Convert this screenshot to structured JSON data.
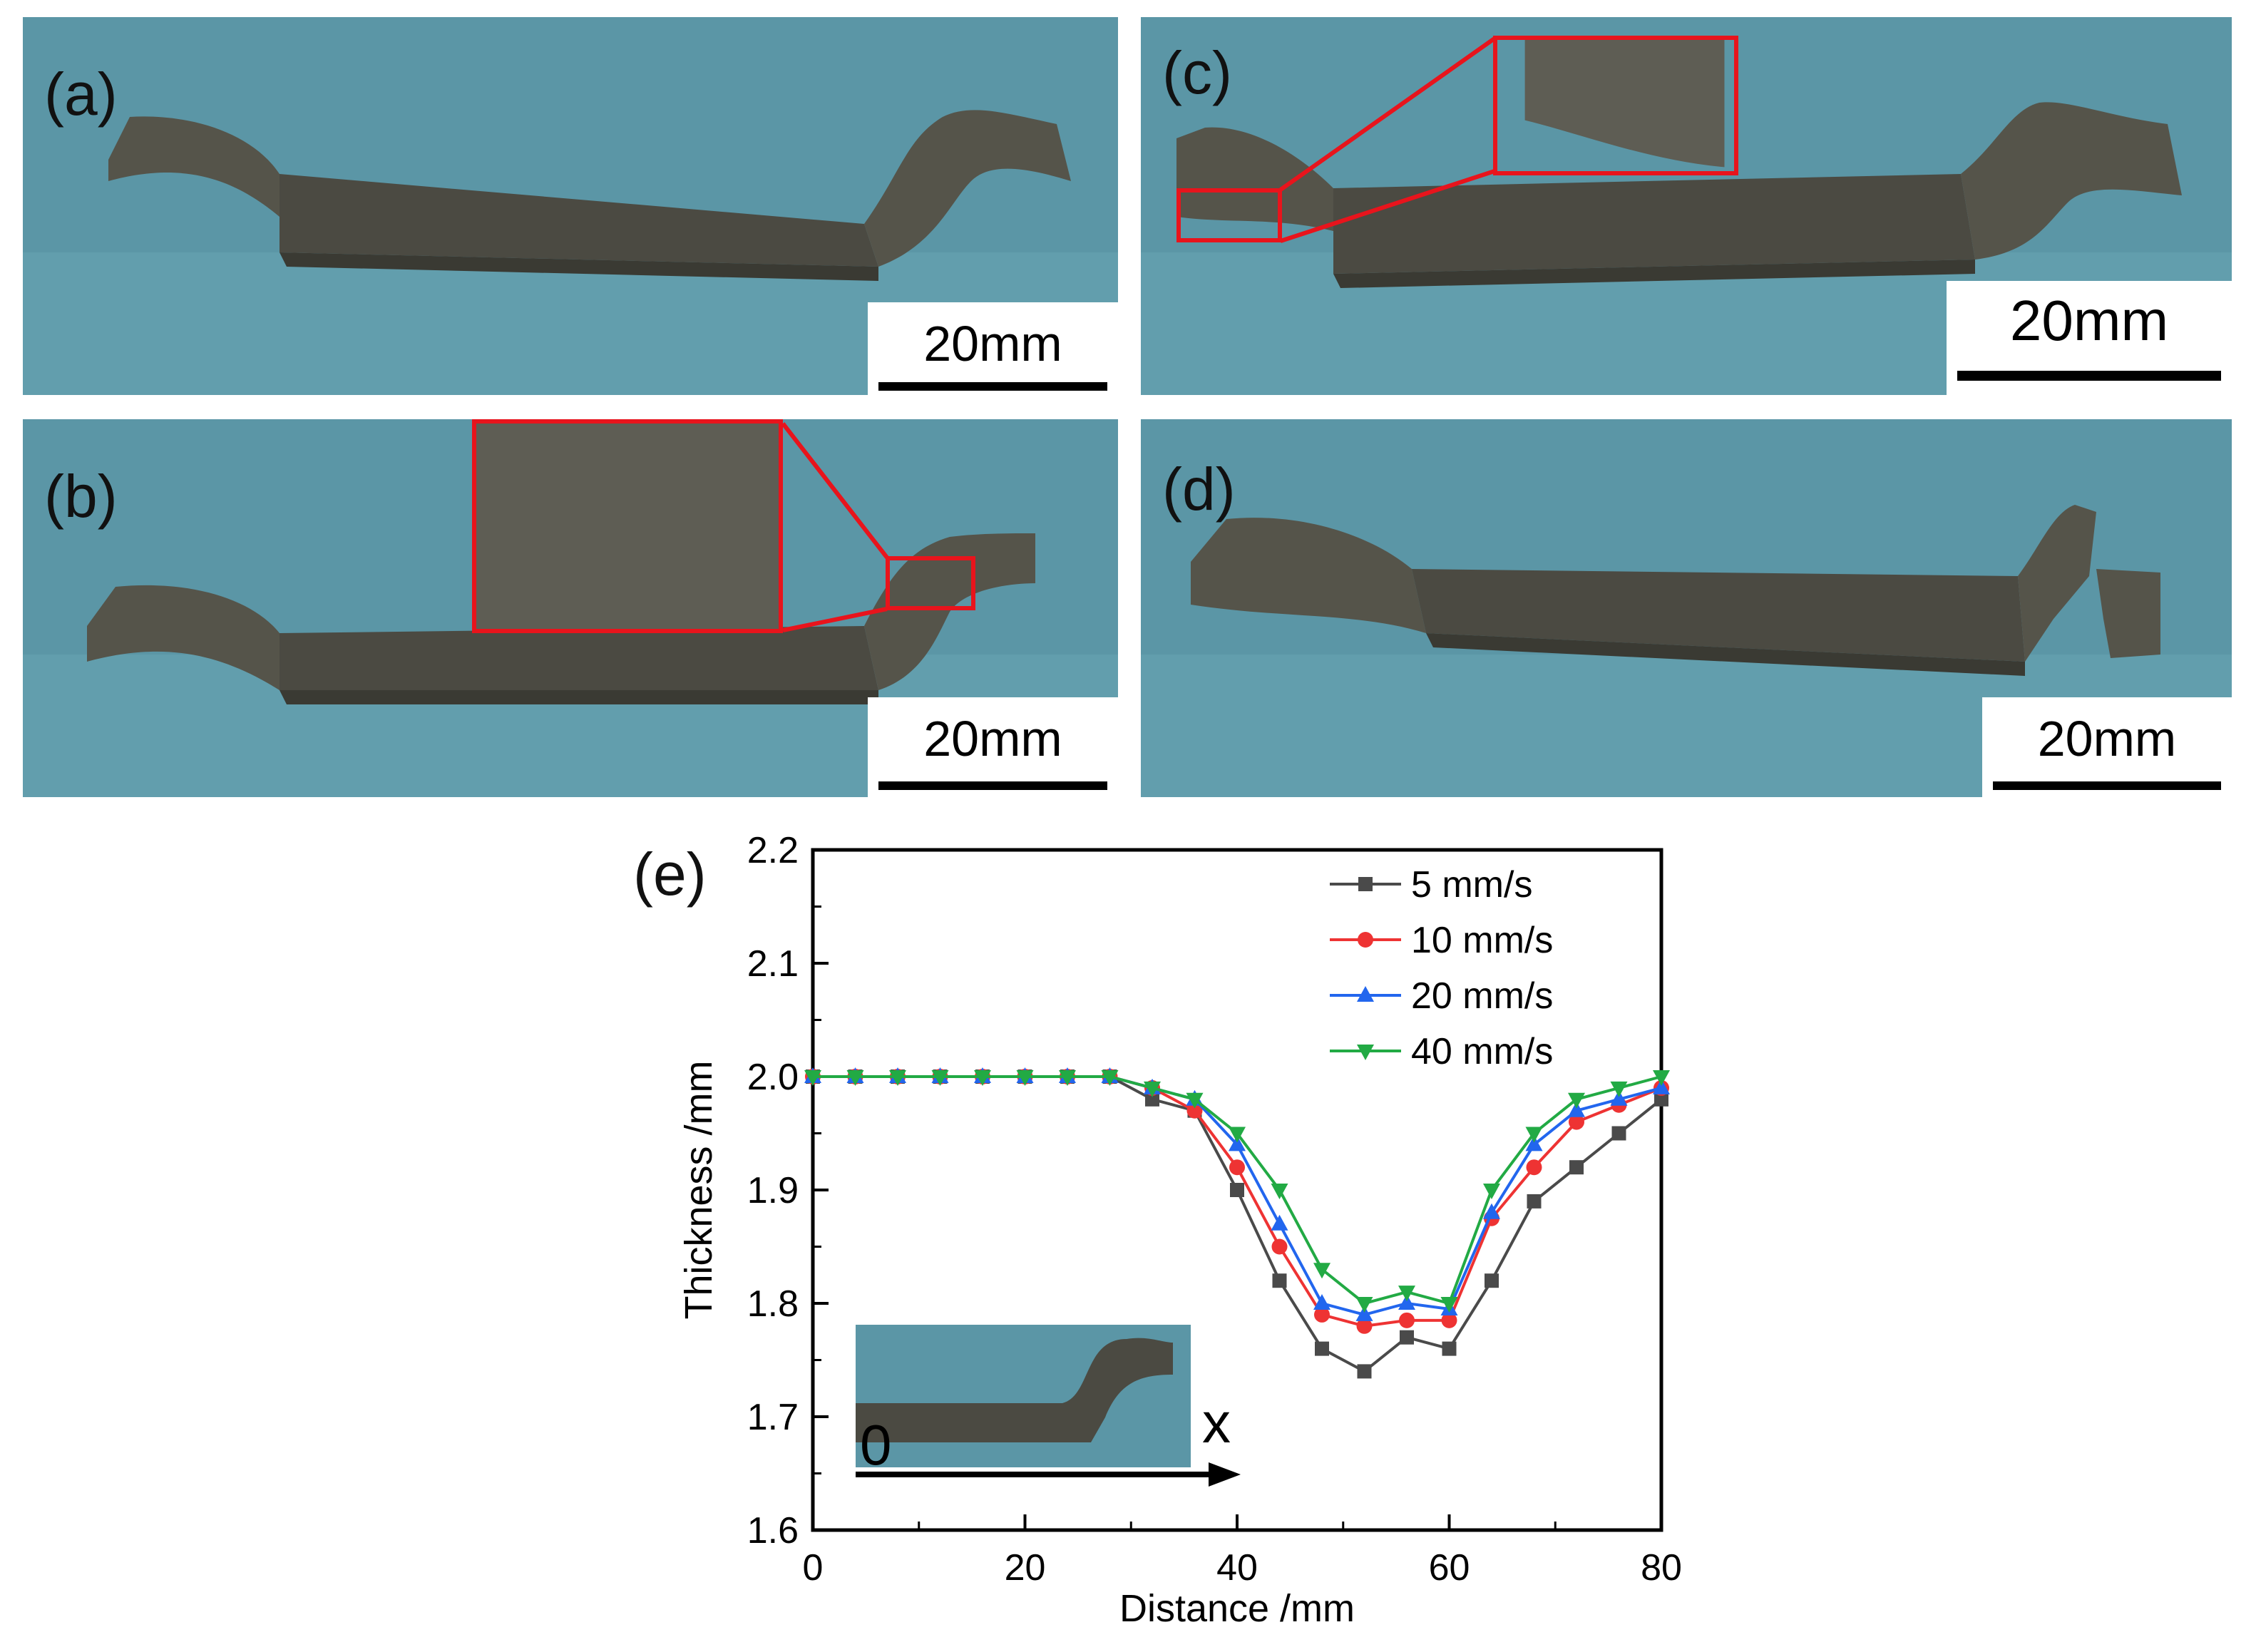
{
  "panels": {
    "a": {
      "label": "(a)",
      "scale": "20mm"
    },
    "b": {
      "label": "(b)",
      "scale": "20mm"
    },
    "c": {
      "label": "(c)",
      "scale": "20mm"
    },
    "d": {
      "label": "(d)",
      "scale": "20mm"
    },
    "e": {
      "label": "(e)"
    }
  },
  "inset": {
    "origin_label": "0",
    "axis_label": "x"
  },
  "colors": {
    "background_blue": "#5b96a6",
    "metal": "#4b4a42",
    "highlight_red": "#e8141c",
    "series_5": "#4a4a4a",
    "series_10": "#ee3333",
    "series_20": "#2266ee",
    "series_40": "#22aa44"
  },
  "chart_data": {
    "type": "line",
    "xlabel": "Distance /mm",
    "ylabel": "Thickness /mm",
    "xlim": [
      0,
      80
    ],
    "ylim": [
      1.6,
      2.2
    ],
    "xticks": [
      "0",
      "20",
      "40",
      "60",
      "80"
    ],
    "yticks": [
      "1.6",
      "1.7",
      "1.8",
      "1.9",
      "2.0",
      "2.1",
      "2.2"
    ],
    "legend_position": "top-right",
    "x": [
      0,
      4,
      8,
      12,
      16,
      20,
      24,
      28,
      32,
      36,
      40,
      44,
      48,
      52,
      56,
      60,
      64,
      68,
      72,
      76,
      80
    ],
    "series": [
      {
        "name": "5 mm/s",
        "marker": "square",
        "color": "#4a4a4a",
        "values": [
          2.0,
          2.0,
          2.0,
          2.0,
          2.0,
          2.0,
          2.0,
          2.0,
          1.98,
          1.97,
          1.9,
          1.82,
          1.76,
          1.74,
          1.77,
          1.76,
          1.82,
          1.89,
          1.92,
          1.95,
          1.98
        ]
      },
      {
        "name": "10 mm/s",
        "marker": "circle",
        "color": "#ee3333",
        "values": [
          2.0,
          2.0,
          2.0,
          2.0,
          2.0,
          2.0,
          2.0,
          2.0,
          1.99,
          1.97,
          1.92,
          1.85,
          1.79,
          1.78,
          1.785,
          1.785,
          1.875,
          1.92,
          1.96,
          1.975,
          1.99
        ]
      },
      {
        "name": "20 mm/s",
        "marker": "triangle-up",
        "color": "#2266ee",
        "values": [
          2.0,
          2.0,
          2.0,
          2.0,
          2.0,
          2.0,
          2.0,
          2.0,
          1.99,
          1.98,
          1.94,
          1.87,
          1.8,
          1.79,
          1.8,
          1.795,
          1.88,
          1.94,
          1.97,
          1.98,
          1.99
        ]
      },
      {
        "name": "40 mm/s",
        "marker": "triangle-down",
        "color": "#22aa44",
        "values": [
          2.0,
          2.0,
          2.0,
          2.0,
          2.0,
          2.0,
          2.0,
          2.0,
          1.99,
          1.98,
          1.95,
          1.9,
          1.83,
          1.8,
          1.81,
          1.8,
          1.9,
          1.95,
          1.98,
          1.99,
          2.0
        ]
      }
    ]
  }
}
